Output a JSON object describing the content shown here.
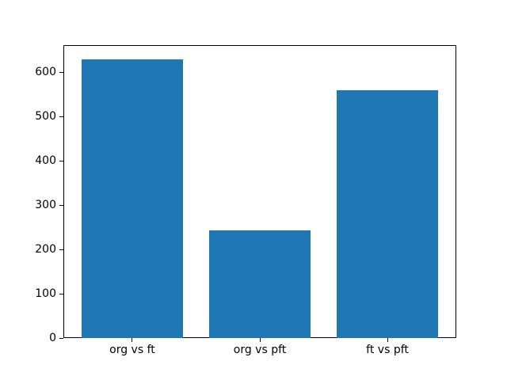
{
  "chart_data": {
    "type": "bar",
    "categories": [
      "org vs ft",
      "org vs pft",
      "ft vs pft"
    ],
    "values": [
      630,
      243,
      560
    ],
    "title": "",
    "xlabel": "",
    "ylabel": "",
    "ylim": [
      0,
      661.5
    ],
    "xlim": [
      -0.54,
      2.54
    ],
    "yticks": [
      0,
      100,
      200,
      300,
      400,
      500,
      600
    ],
    "bar_color": "#1f77b4",
    "bar_width_fraction": 0.8,
    "axis_color": "#000000",
    "background_color": "#ffffff",
    "grid": false,
    "legend": null
  }
}
